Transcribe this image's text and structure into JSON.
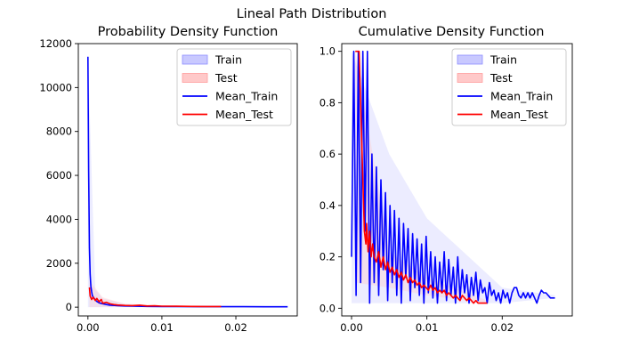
{
  "figure": {
    "suptitle": "Lineal Path Distribution"
  },
  "colors": {
    "train": "#0000ff",
    "test": "#ff0000",
    "train_fill": "#c9c9ff",
    "test_fill": "#ffc9c9"
  },
  "chart_data": [
    {
      "type": "line",
      "title": "Probability Density Function",
      "xlabel": "",
      "ylabel": "",
      "xlim": [
        -0.0013,
        0.0283
      ],
      "ylim": [
        -400,
        12000
      ],
      "xticks": [
        0.0,
        0.01,
        0.02
      ],
      "xtick_labels": [
        "0.00",
        "0.01",
        "0.02"
      ],
      "yticks": [
        0,
        2000,
        4000,
        6000,
        8000,
        10000,
        12000
      ],
      "ytick_labels": [
        "0",
        "2000",
        "4000",
        "6000",
        "8000",
        "10000",
        "12000"
      ],
      "legend": {
        "position": "top-right",
        "entries": [
          "Train",
          "Test",
          "Mean_Train",
          "Mean_Test"
        ]
      },
      "series": [
        {
          "name": "Mean_Train",
          "style": "line",
          "x": [
            0.0,
            0.0001,
            0.0002,
            0.0003,
            0.0004,
            0.0005,
            0.0006,
            0.0008,
            0.001,
            0.0012,
            0.0015,
            0.002,
            0.0025,
            0.003,
            0.004,
            0.005,
            0.006,
            0.008,
            0.01,
            0.012,
            0.015,
            0.018,
            0.021,
            0.024,
            0.027
          ],
          "y": [
            11400,
            6200,
            2700,
            1500,
            950,
            700,
            520,
            420,
            330,
            260,
            200,
            150,
            120,
            90,
            70,
            55,
            45,
            35,
            28,
            25,
            22,
            20,
            20,
            18,
            18
          ]
        },
        {
          "name": "Mean_Test",
          "style": "line",
          "x": [
            0.0002,
            0.0003,
            0.0005,
            0.0007,
            0.001,
            0.0012,
            0.0015,
            0.0018,
            0.002,
            0.0025,
            0.003,
            0.0035,
            0.004,
            0.005,
            0.006,
            0.007,
            0.008,
            0.009,
            0.01,
            0.012,
            0.014,
            0.016,
            0.018
          ],
          "y": [
            900,
            500,
            350,
            450,
            300,
            400,
            250,
            350,
            180,
            220,
            150,
            120,
            100,
            80,
            70,
            90,
            55,
            60,
            45,
            40,
            35,
            30,
            28
          ]
        },
        {
          "name": "Train",
          "style": "band",
          "note": "min–max envelope (thin)",
          "x": [
            0.0,
            0.001,
            0.002,
            0.005,
            0.01,
            0.02,
            0.027
          ],
          "lower": [
            0,
            0,
            0,
            0,
            0,
            0,
            0
          ],
          "upper": [
            11500,
            800,
            400,
            150,
            60,
            40,
            30
          ]
        },
        {
          "name": "Test",
          "style": "band",
          "x": [
            0.0002,
            0.002,
            0.005,
            0.01,
            0.018
          ],
          "lower": [
            0,
            0,
            0,
            0,
            0
          ],
          "upper": [
            1200,
            450,
            150,
            80,
            40
          ]
        }
      ]
    },
    {
      "type": "line",
      "title": "Cumulative Density Function",
      "xlabel": "",
      "ylabel": "",
      "xlim": [
        -0.0013,
        0.0293
      ],
      "ylim": [
        -0.03,
        1.03
      ],
      "xticks": [
        0.0,
        0.01,
        0.02
      ],
      "xtick_labels": [
        "0.00",
        "0.01",
        "0.02"
      ],
      "yticks": [
        0.0,
        0.2,
        0.4,
        0.6,
        0.8,
        1.0
      ],
      "ytick_labels": [
        "0.0",
        "0.2",
        "0.4",
        "0.6",
        "0.8",
        "1.0"
      ],
      "legend": {
        "position": "top-right",
        "entries": [
          "Train",
          "Test",
          "Mean_Train",
          "Mean_Test"
        ]
      },
      "series": [
        {
          "name": "Mean_Train",
          "style": "line",
          "x": [
            0.0,
            0.0003,
            0.0006,
            0.0009,
            0.0012,
            0.0015,
            0.0018,
            0.0021,
            0.0024,
            0.0027,
            0.003,
            0.0033,
            0.0036,
            0.0039,
            0.0042,
            0.0045,
            0.0048,
            0.0051,
            0.0054,
            0.0057,
            0.006,
            0.0063,
            0.0066,
            0.0069,
            0.0072,
            0.0075,
            0.0078,
            0.0081,
            0.0084,
            0.0087,
            0.009,
            0.0093,
            0.0096,
            0.0099,
            0.0102,
            0.0105,
            0.0108,
            0.0111,
            0.0114,
            0.0117,
            0.012,
            0.0123,
            0.0126,
            0.0129,
            0.0132,
            0.0135,
            0.0138,
            0.0141,
            0.0144,
            0.0147,
            0.015,
            0.0153,
            0.0156,
            0.0159,
            0.0162,
            0.0165,
            0.0168,
            0.0171,
            0.0174,
            0.0177,
            0.018,
            0.0183,
            0.0186,
            0.0189,
            0.0192,
            0.0195,
            0.0198,
            0.0201,
            0.0204,
            0.0207,
            0.021,
            0.0213,
            0.0216,
            0.0219,
            0.0222,
            0.0225,
            0.0228,
            0.0231,
            0.0234,
            0.0237,
            0.024,
            0.0243,
            0.0246,
            0.0249,
            0.0252,
            0.0255,
            0.0258,
            0.0261,
            0.0264,
            0.0267,
            0.027
          ],
          "y": [
            0.2,
            1.0,
            0.05,
            1.0,
            0.1,
            1.0,
            0.3,
            1.0,
            0.02,
            0.6,
            0.1,
            0.55,
            0.05,
            0.5,
            0.15,
            0.45,
            0.03,
            0.4,
            0.1,
            0.38,
            0.05,
            0.35,
            0.02,
            0.33,
            0.12,
            0.31,
            0.03,
            0.29,
            0.08,
            0.27,
            0.05,
            0.25,
            0.02,
            0.28,
            0.06,
            0.22,
            0.04,
            0.2,
            0.02,
            0.18,
            0.06,
            0.22,
            0.03,
            0.19,
            0.05,
            0.16,
            0.02,
            0.2,
            0.04,
            0.15,
            0.06,
            0.13,
            0.02,
            0.12,
            0.05,
            0.14,
            0.03,
            0.11,
            0.06,
            0.08,
            0.02,
            0.1,
            0.05,
            0.07,
            0.03,
            0.06,
            0.02,
            0.07,
            0.04,
            0.06,
            0.02,
            0.06,
            0.08,
            0.08,
            0.05,
            0.04,
            0.06,
            0.04,
            0.06,
            0.04,
            0.06,
            0.04,
            0.02,
            0.05,
            0.07,
            0.06,
            0.06,
            0.05,
            0.04,
            0.04,
            0.04
          ]
        },
        {
          "name": "Mean_Test",
          "style": "line",
          "x": [
            0.0005,
            0.001,
            0.0013,
            0.0015,
            0.0017,
            0.0019,
            0.002,
            0.0022,
            0.0024,
            0.0026,
            0.0028,
            0.003,
            0.0033,
            0.0036,
            0.0039,
            0.0042,
            0.0045,
            0.0048,
            0.0051,
            0.0054,
            0.0057,
            0.006,
            0.0063,
            0.0066,
            0.0069,
            0.0072,
            0.0075,
            0.0078,
            0.0081,
            0.0084,
            0.0087,
            0.009,
            0.0093,
            0.0096,
            0.0099,
            0.0102,
            0.0105,
            0.0108,
            0.0111,
            0.0114,
            0.0117,
            0.012,
            0.0123,
            0.0126,
            0.0129,
            0.0132,
            0.0135,
            0.0138,
            0.0141,
            0.0144,
            0.0147,
            0.015,
            0.0153,
            0.0156,
            0.0159,
            0.0162,
            0.0165,
            0.0168,
            0.0171,
            0.0174,
            0.0177,
            0.018
          ],
          "y": [
            1.0,
            1.0,
            0.7,
            0.5,
            0.3,
            0.25,
            0.33,
            0.22,
            0.3,
            0.2,
            0.25,
            0.2,
            0.18,
            0.22,
            0.16,
            0.2,
            0.15,
            0.18,
            0.14,
            0.16,
            0.13,
            0.15,
            0.12,
            0.14,
            0.11,
            0.13,
            0.1,
            0.12,
            0.1,
            0.11,
            0.09,
            0.1,
            0.08,
            0.09,
            0.08,
            0.07,
            0.09,
            0.07,
            0.08,
            0.06,
            0.07,
            0.06,
            0.07,
            0.05,
            0.06,
            0.05,
            0.04,
            0.05,
            0.04,
            0.03,
            0.05,
            0.04,
            0.03,
            0.04,
            0.03,
            0.02,
            0.03,
            0.02,
            0.02,
            0.02,
            0.02,
            0.02
          ]
        },
        {
          "name": "Train",
          "style": "band",
          "x": [
            0.0,
            0.005,
            0.01,
            0.02,
            0.027
          ],
          "lower": [
            0.02,
            0.02,
            0.02,
            0.02,
            0.04
          ],
          "upper": [
            1.0,
            0.6,
            0.35,
            0.08,
            0.05
          ]
        },
        {
          "name": "Test",
          "style": "band",
          "x": [
            0.0005,
            0.005,
            0.01,
            0.018
          ],
          "lower": [
            0.1,
            0.08,
            0.05,
            0.02
          ],
          "upper": [
            1.0,
            0.22,
            0.12,
            0.03
          ]
        }
      ]
    }
  ]
}
